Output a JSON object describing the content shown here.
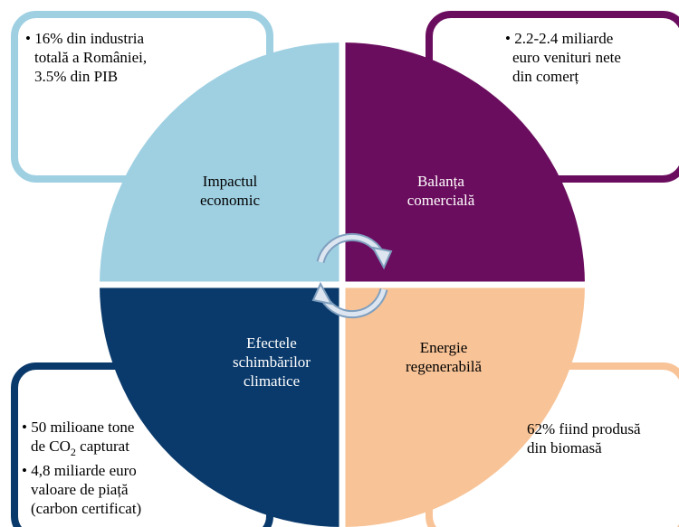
{
  "quadrants": [
    {
      "label_lines": [
        "Impactul",
        "economic"
      ],
      "box_lines": [
        "• 16% din industria",
        "totală a României,",
        "3.5% din PIB"
      ]
    },
    {
      "label_lines": [
        "Balanța",
        "comercială"
      ],
      "box_lines": [
        "• 2.2-2.4 miliarde",
        "euro venituri nete",
        "din comerț"
      ]
    },
    {
      "label_lines": [
        "Efectele",
        "schimbărilor",
        "climatice"
      ],
      "box_lines": [
        [
          "• 50 milioane tone"
        ],
        [
          "de CO",
          "2",
          " capturat"
        ],
        [
          "• 4,8 miliarde euro"
        ],
        [
          "valoare de piață"
        ],
        [
          "(carbon certificat)"
        ]
      ]
    },
    {
      "label_lines": [
        "Energie",
        "regenerabilă"
      ],
      "box_lines": [
        "62% fiind produsă",
        "din biomasă"
      ]
    }
  ]
}
